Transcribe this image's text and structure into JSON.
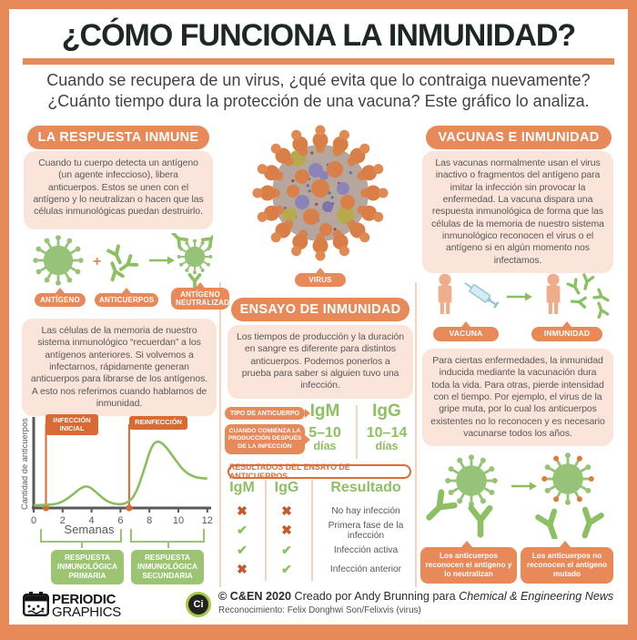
{
  "page": {
    "title": "¿CÓMO FUNCIONA LA INMUNIDAD?",
    "subtitle_line1": "Cuando se recupera de un virus, ¿qué evita que lo contraiga nuevamente?",
    "subtitle_line2": "¿Cuánto tiempo dura la protección de una vacuna? Este gráfico lo analiza."
  },
  "colors": {
    "accent_orange": "#E8895A",
    "deep_orange": "#D96A33",
    "green": "#8DC063",
    "peach": "#FBE4D9"
  },
  "left": {
    "header": "LA RESPUESTA INMUNE",
    "intro": "Cuando tu cuerpo detecta un antígeno (un agente infeccioso), libera anticuerpos. Estos se unen con el antígeno y lo neutralizan o hacen que las células inmunológicas puedan destruirlo.",
    "plus": "+",
    "label_antigen": "ANTÍGENO",
    "label_antibodies": "ANTICUERPOS",
    "label_neutralized": "ANTÍGENO NEUTRALIZADO",
    "memory": "Las células de la memoria de nuestro sistema inmunológico “recuerdan” a los antígenos anteriores. Si volvemos a infectarnos, rápidamente generan anticuerpos para librarse de los antígenos. A esto nos referimos cuando hablamos de inmunidad."
  },
  "chart_data": {
    "type": "line",
    "title": "",
    "xlabel": "Semanas",
    "ylabel": "Cantidad de anticuerpos",
    "x_ticks": [
      0,
      2,
      4,
      6,
      8,
      10,
      12
    ],
    "xlim": [
      0,
      12.3
    ],
    "ylim": [
      0,
      1
    ],
    "grid": false,
    "legend": "none",
    "series": [
      {
        "name": "Cantidad de anticuerpos",
        "points": [
          [
            0,
            0.03
          ],
          [
            0.9,
            0.035
          ],
          [
            1.8,
            0.05
          ],
          [
            2.6,
            0.14
          ],
          [
            3.3,
            0.24
          ],
          [
            3.8,
            0.255
          ],
          [
            4.4,
            0.17
          ],
          [
            5.1,
            0.07
          ],
          [
            5.8,
            0.04
          ],
          [
            6.4,
            0.05
          ],
          [
            7.0,
            0.14
          ],
          [
            7.6,
            0.42
          ],
          [
            8.1,
            0.7
          ],
          [
            8.5,
            0.78
          ],
          [
            9.0,
            0.74
          ],
          [
            9.7,
            0.58
          ],
          [
            10.4,
            0.42
          ],
          [
            11.2,
            0.35
          ],
          [
            12,
            0.34
          ]
        ]
      }
    ],
    "events": [
      {
        "label": "INFECCIÓN INICIAL",
        "week": 0.85
      },
      {
        "label": "REINFECCIÓN",
        "week": 6.6
      }
    ],
    "brackets": [
      {
        "label": "RESPUESTA INMUNOLÓGICA PRIMARIA",
        "from": 0,
        "to": 6
      },
      {
        "label": "RESPUESTA INMUNOLÓGICA SECUNDARIA",
        "from": 6.6,
        "to": 12
      }
    ]
  },
  "center": {
    "virus_label": "VIRUS",
    "header": "ENSAYO DE INMUNIDAD",
    "intro": "Los tiempos de producción y la duración en sangre es diferente para distintos anticuerpos. Podemos ponerlos a prueba para saber si alguien tuvo una infección.",
    "antibody_table": {
      "type_label": "TIPO DE ANTICUERPO",
      "onset_label": "CUANDO COMIENZA LA PRODUCCIÓN DESPUÉS DE LA INFECCIÓN",
      "igm": "IgM",
      "igg": "IgG",
      "igm_onset_value": "5–10",
      "igg_onset_value": "10–14",
      "igm_onset_unit": "días",
      "igg_onset_unit": "días"
    },
    "results": {
      "header": "RESULTADOS DEL ENSAYO DE ANTICUERPOS",
      "col_igm": "IgM",
      "col_igg": "IgG",
      "col_result": "Resultado",
      "rows": [
        {
          "igm": "no",
          "igg": "no",
          "result": "No hay infección"
        },
        {
          "igm": "yes",
          "igg": "no",
          "result": "Primera fase de la infección"
        },
        {
          "igm": "yes",
          "igg": "yes",
          "result": "Infección activa"
        },
        {
          "igm": "no",
          "igg": "yes",
          "result": "Infección anterior"
        }
      ]
    }
  },
  "right": {
    "header": "VACUNAS E INMUNIDAD",
    "intro": "Las vacunas normalmente usan el virus inactivo o fragmentos del antígeno para imitar la infección sin provocar la enfermedad. La vacuna dispara una respuesta inmunológica de forma que las células de la memoria de nuestro sistema inmunológico reconocen el virus o el antígeno si en algún momento nos infectamos.",
    "vaccine_label": "VACUNA",
    "immunity_label": "INMUNIDAD",
    "duration": "Para ciertas enfermedades, la inmunidad inducida mediante la vacunación dura toda la vida. Para otras, pierde intensidad con el tiempo. Por ejemplo, el virus de la gripe muta, por lo cual los anticuerpos existentes no lo reconocen y es necesario vacunarse todos los años.",
    "recognized_label": "Los anticuerpos reconocen el antígeno y lo neutralizan",
    "not_recognized_label": "Los anticuerpos no reconocen el antígeno mutado"
  },
  "footer": {
    "logo_line1": "PERIODIC",
    "logo_line2": "GRAPHICS",
    "badge": "Ci",
    "credit_bold": "© C&EN 2020",
    "credit_mid": " Creado por Andy Brunning para ",
    "credit_source": "Chemical & Engineering News",
    "attribution": "Reconocimiento: Felix Donghwi Son/Felixvis (virus)"
  }
}
